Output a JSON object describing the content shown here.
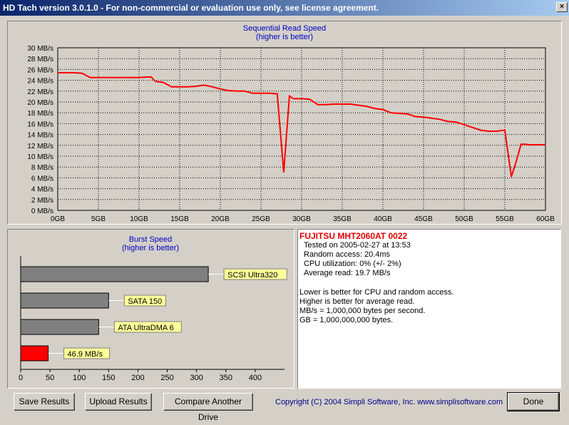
{
  "window": {
    "title": "HD Tach version 3.0.1.0  - For non-commercial or evaluation use only, see license agreement."
  },
  "seq_chart": {
    "title_line1": "Sequential Read Speed",
    "title_line2": "(higher is better)"
  },
  "burst_chart": {
    "title_line1": "Burst Speed",
    "title_line2": "(higher is better)"
  },
  "info": {
    "drive": "FUJITSU MHT2060AT 0022",
    "tested": "Tested on 2005-02-27 at 13:53",
    "random_access": "Random access: 20.4ms",
    "cpu": "CPU utilization: 0% (+/- 2%)",
    "avg_read": "Average read: 19.7 MB/s",
    "note1": "Lower is better for CPU and random access.",
    "note2": "Higher is better for average read.",
    "note3": "MB/s = 1,000,000 bytes per second.",
    "note4": "GB = 1,000,000,000 bytes."
  },
  "buttons": {
    "save": "Save Results",
    "upload": "Upload Results",
    "compare": "Compare Another Drive",
    "done": "Done"
  },
  "copyright": "Copyright (C) 2004 Simpli Software, Inc. www.simplisoftware.com",
  "colors": {
    "series": "#ff0000",
    "bar_gray": "#808080",
    "bar_red": "#ff0000",
    "label_bg": "#ffff99",
    "title_blue": "#0000c0"
  },
  "chart_data": [
    {
      "type": "line",
      "title": "Sequential Read Speed",
      "subtitle": "(higher is better)",
      "xlabel": "",
      "ylabel": "",
      "xlim": [
        0,
        60
      ],
      "ylim": [
        0,
        30
      ],
      "x_ticks": [
        "0GB",
        "5GB",
        "10GB",
        "15GB",
        "20GB",
        "25GB",
        "30GB",
        "35GB",
        "40GB",
        "45GB",
        "50GB",
        "55GB",
        "60GB"
      ],
      "y_ticks": [
        "0 MB/s",
        "2 MB/s",
        "4 MB/s",
        "6 MB/s",
        "8 MB/s",
        "10 MB/s",
        "12 MB/s",
        "14 MB/s",
        "16 MB/s",
        "18 MB/s",
        "20 MB/s",
        "22 MB/s",
        "24 MB/s",
        "26 MB/s",
        "28 MB/s",
        "30 MB/s"
      ],
      "grid": true,
      "series": [
        {
          "x": [
            0,
            1,
            2,
            3,
            3.5,
            4,
            5,
            6,
            7,
            8,
            9,
            10,
            11,
            11.5,
            12,
            13,
            14,
            15,
            16,
            17,
            18,
            19,
            20,
            21,
            22,
            23,
            24,
            25,
            26,
            27,
            27.8,
            28.5,
            29,
            30,
            31,
            32,
            33,
            34,
            35,
            36,
            37,
            38,
            39,
            40,
            41,
            42,
            43,
            44,
            45,
            46,
            47,
            48,
            49,
            50,
            51,
            52,
            53,
            54,
            55,
            55.8,
            56.3,
            57,
            57.5,
            58,
            59,
            60
          ],
          "y": [
            25.4,
            25.4,
            25.4,
            25.3,
            24.9,
            24.5,
            24.5,
            24.5,
            24.5,
            24.5,
            24.5,
            24.5,
            24.6,
            24.6,
            23.8,
            23.6,
            22.8,
            22.8,
            22.8,
            22.9,
            23.1,
            22.8,
            22.4,
            22.1,
            22.0,
            22.0,
            21.6,
            21.6,
            21.6,
            21.5,
            7.0,
            21.1,
            20.6,
            20.6,
            20.5,
            19.5,
            19.5,
            19.6,
            19.6,
            19.6,
            19.4,
            19.2,
            18.8,
            18.6,
            18.0,
            17.9,
            17.8,
            17.3,
            17.2,
            17.0,
            16.8,
            16.4,
            16.3,
            15.8,
            15.3,
            14.8,
            14.6,
            14.6,
            14.8,
            6.2,
            8.5,
            12.2,
            12.2,
            12.1,
            12.1,
            12.1
          ]
        }
      ]
    },
    {
      "type": "bar",
      "title": "Burst Speed",
      "subtitle": "(higher is better)",
      "orientation": "horizontal",
      "xlim": [
        0,
        450
      ],
      "x_ticks": [
        "0",
        "50",
        "100",
        "150",
        "200",
        "250",
        "300",
        "350",
        "400"
      ],
      "categories": [
        "SCSI Ultra320",
        "SATA 150",
        "ATA UltraDMA 6",
        "46.9 MB/s"
      ],
      "values": [
        320,
        150,
        133,
        46.9
      ]
    }
  ]
}
